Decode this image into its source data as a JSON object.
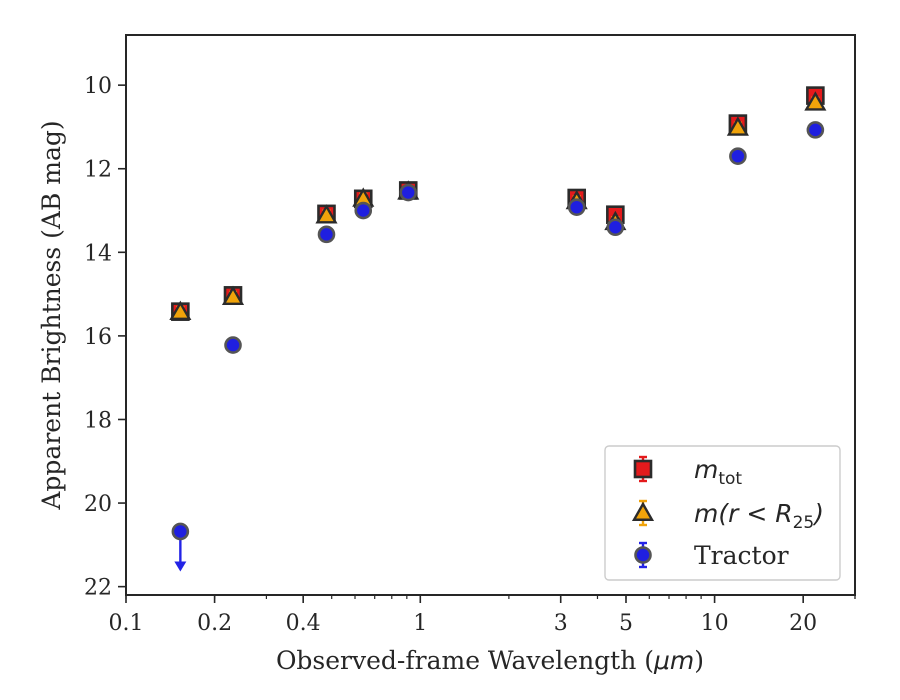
{
  "chart_data": {
    "type": "scatter",
    "xscale": "log",
    "xlim": [
      0.1,
      30
    ],
    "ylim": [
      22.2,
      8.8
    ],
    "y_inverted": true,
    "xlabel_prefix": "Observed-frame Wavelength (",
    "xlabel_unit": "μm",
    "xlabel_suffix": ")",
    "ylabel": "Apparent Brightness (AB mag)",
    "x_ticks": [
      {
        "value": 0.1,
        "label": "0.1"
      },
      {
        "value": 0.2,
        "label": "0.2"
      },
      {
        "value": 0.4,
        "label": "0.4"
      },
      {
        "value": 1,
        "label": "1"
      },
      {
        "value": 3,
        "label": "3"
      },
      {
        "value": 5,
        "label": "5"
      },
      {
        "value": 10,
        "label": "10"
      },
      {
        "value": 20,
        "label": "20"
      }
    ],
    "y_ticks": [
      {
        "value": 10,
        "label": "10"
      },
      {
        "value": 12,
        "label": "12"
      },
      {
        "value": 14,
        "label": "14"
      },
      {
        "value": 16,
        "label": "16"
      },
      {
        "value": 18,
        "label": "18"
      },
      {
        "value": 20,
        "label": "20"
      },
      {
        "value": 22,
        "label": "22"
      }
    ],
    "grid": false,
    "legend_position": "lower-right",
    "series": [
      {
        "name": "m_tot",
        "label_main": "m",
        "label_sub": "tot",
        "marker": "square",
        "color": "#e41a1c",
        "edge": "#2b2b2b",
        "err_color": "#e41a1c",
        "points": [
          {
            "x": 0.153,
            "y": 15.42,
            "err": 0.1
          },
          {
            "x": 0.231,
            "y": 15.03,
            "err": 0.1
          },
          {
            "x": 0.48,
            "y": 13.08,
            "err": 0.08
          },
          {
            "x": 0.64,
            "y": 12.72,
            "err": 0.08
          },
          {
            "x": 0.91,
            "y": 12.52,
            "err": 0.08
          },
          {
            "x": 3.4,
            "y": 12.7,
            "err": 0.08
          },
          {
            "x": 4.6,
            "y": 13.1,
            "err": 0.1
          },
          {
            "x": 12.0,
            "y": 10.92,
            "err": 0.1
          },
          {
            "x": 22.0,
            "y": 10.25,
            "err": 0.1
          }
        ]
      },
      {
        "name": "m(r < R_25)",
        "label_main": "m(r < R",
        "label_sub": "25",
        "label_tail": ")",
        "marker": "triangle",
        "color": "#f0a30a",
        "edge": "#2b2b2b",
        "err_color": "#f0a30a",
        "points": [
          {
            "x": 0.153,
            "y": 15.43,
            "err": 0.08
          },
          {
            "x": 0.231,
            "y": 15.07,
            "err": 0.08
          },
          {
            "x": 0.48,
            "y": 13.12,
            "err": 0.08
          },
          {
            "x": 0.64,
            "y": 12.72,
            "err": 0.08
          },
          {
            "x": 0.91,
            "y": 12.55,
            "err": 0.08
          },
          {
            "x": 3.4,
            "y": 12.78,
            "err": 0.08
          },
          {
            "x": 4.6,
            "y": 13.28,
            "err": 0.08
          },
          {
            "x": 12.0,
            "y": 11.02,
            "err": 0.08
          },
          {
            "x": 22.0,
            "y": 10.42,
            "err": 0.08
          }
        ]
      },
      {
        "name": "Tractor",
        "label_main": "Tractor",
        "marker": "circle",
        "color": "#1f1fe0",
        "edge": "#555555",
        "err_color": "#2323e6",
        "points": [
          {
            "x": 0.153,
            "y": 20.68,
            "err": 0.05,
            "upper_limit": true
          },
          {
            "x": 0.231,
            "y": 16.22,
            "err": 0.05
          },
          {
            "x": 0.48,
            "y": 13.57,
            "err": 0.05
          },
          {
            "x": 0.64,
            "y": 13.0,
            "err": 0.05
          },
          {
            "x": 0.91,
            "y": 12.57,
            "err": 0.05
          },
          {
            "x": 3.4,
            "y": 12.92,
            "err": 0.05
          },
          {
            "x": 4.6,
            "y": 13.4,
            "err": 0.05
          },
          {
            "x": 12.0,
            "y": 11.7,
            "err": 0.05
          },
          {
            "x": 22.0,
            "y": 11.07,
            "err": 0.05
          }
        ]
      }
    ]
  }
}
